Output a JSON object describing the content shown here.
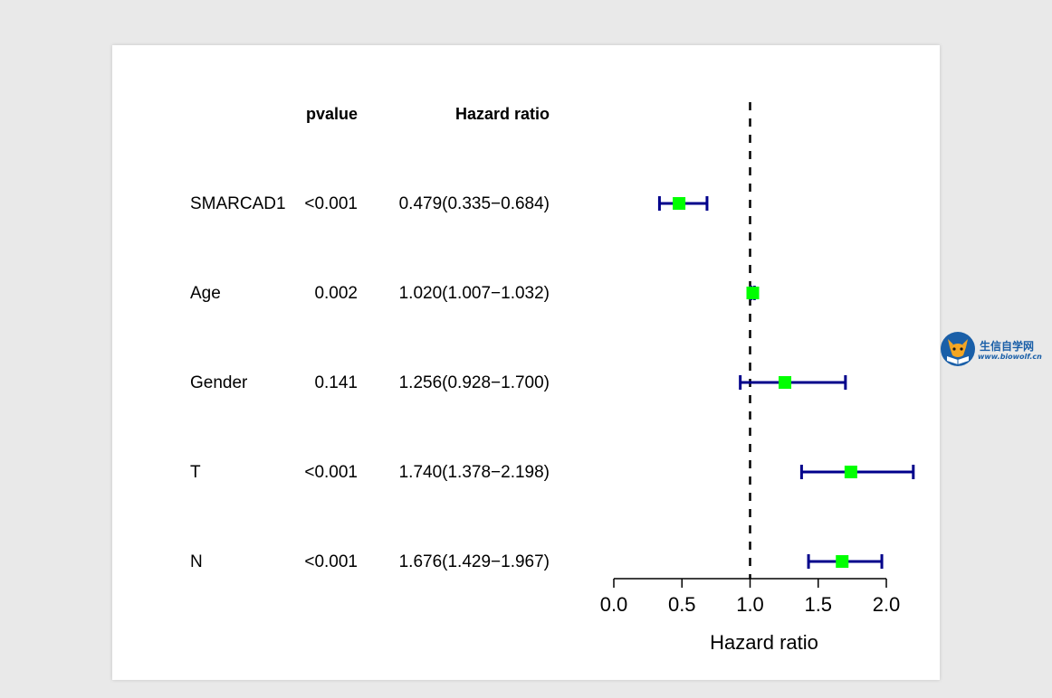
{
  "chart_data": {
    "type": "forest",
    "columns": {
      "pvalue_header": "pvalue",
      "hr_header": "Hazard ratio"
    },
    "rows": [
      {
        "label": "SMARCAD1",
        "pvalue": "<0.001",
        "hr_text": "0.479(0.335−0.684)",
        "hr": 0.479,
        "lower": 0.335,
        "upper": 0.684
      },
      {
        "label": "Age",
        "pvalue": "0.002",
        "hr_text": "1.020(1.007−1.032)",
        "hr": 1.02,
        "lower": 1.007,
        "upper": 1.032
      },
      {
        "label": "Gender",
        "pvalue": "0.141",
        "hr_text": "1.256(0.928−1.700)",
        "hr": 1.256,
        "lower": 0.928,
        "upper": 1.7
      },
      {
        "label": "T",
        "pvalue": "<0.001",
        "hr_text": "1.740(1.378−2.198)",
        "hr": 1.74,
        "lower": 1.378,
        "upper": 2.198
      },
      {
        "label": "N",
        "pvalue": "<0.001",
        "hr_text": "1.676(1.429−1.967)",
        "hr": 1.676,
        "lower": 1.429,
        "upper": 1.967
      }
    ],
    "xlabel": "Hazard ratio",
    "xlim": [
      0,
      2
    ],
    "xticks": [
      0,
      0.5,
      1,
      1.5,
      2
    ],
    "xtick_labels": [
      "0.0",
      "0.5",
      "1.0",
      "1.5",
      "2.0"
    ],
    "reference_line": 1,
    "grid": false,
    "colors": {
      "ci": "#00008b",
      "point": "#00ff00",
      "reference": "#000000",
      "text": "#000000"
    }
  },
  "watermark": {
    "title": "生信自学网",
    "url": "www.biowolf.cn",
    "colors": {
      "brand": "#1a5fa8",
      "accent": "#f5a623"
    },
    "icon": "wolf-logo-icon"
  }
}
